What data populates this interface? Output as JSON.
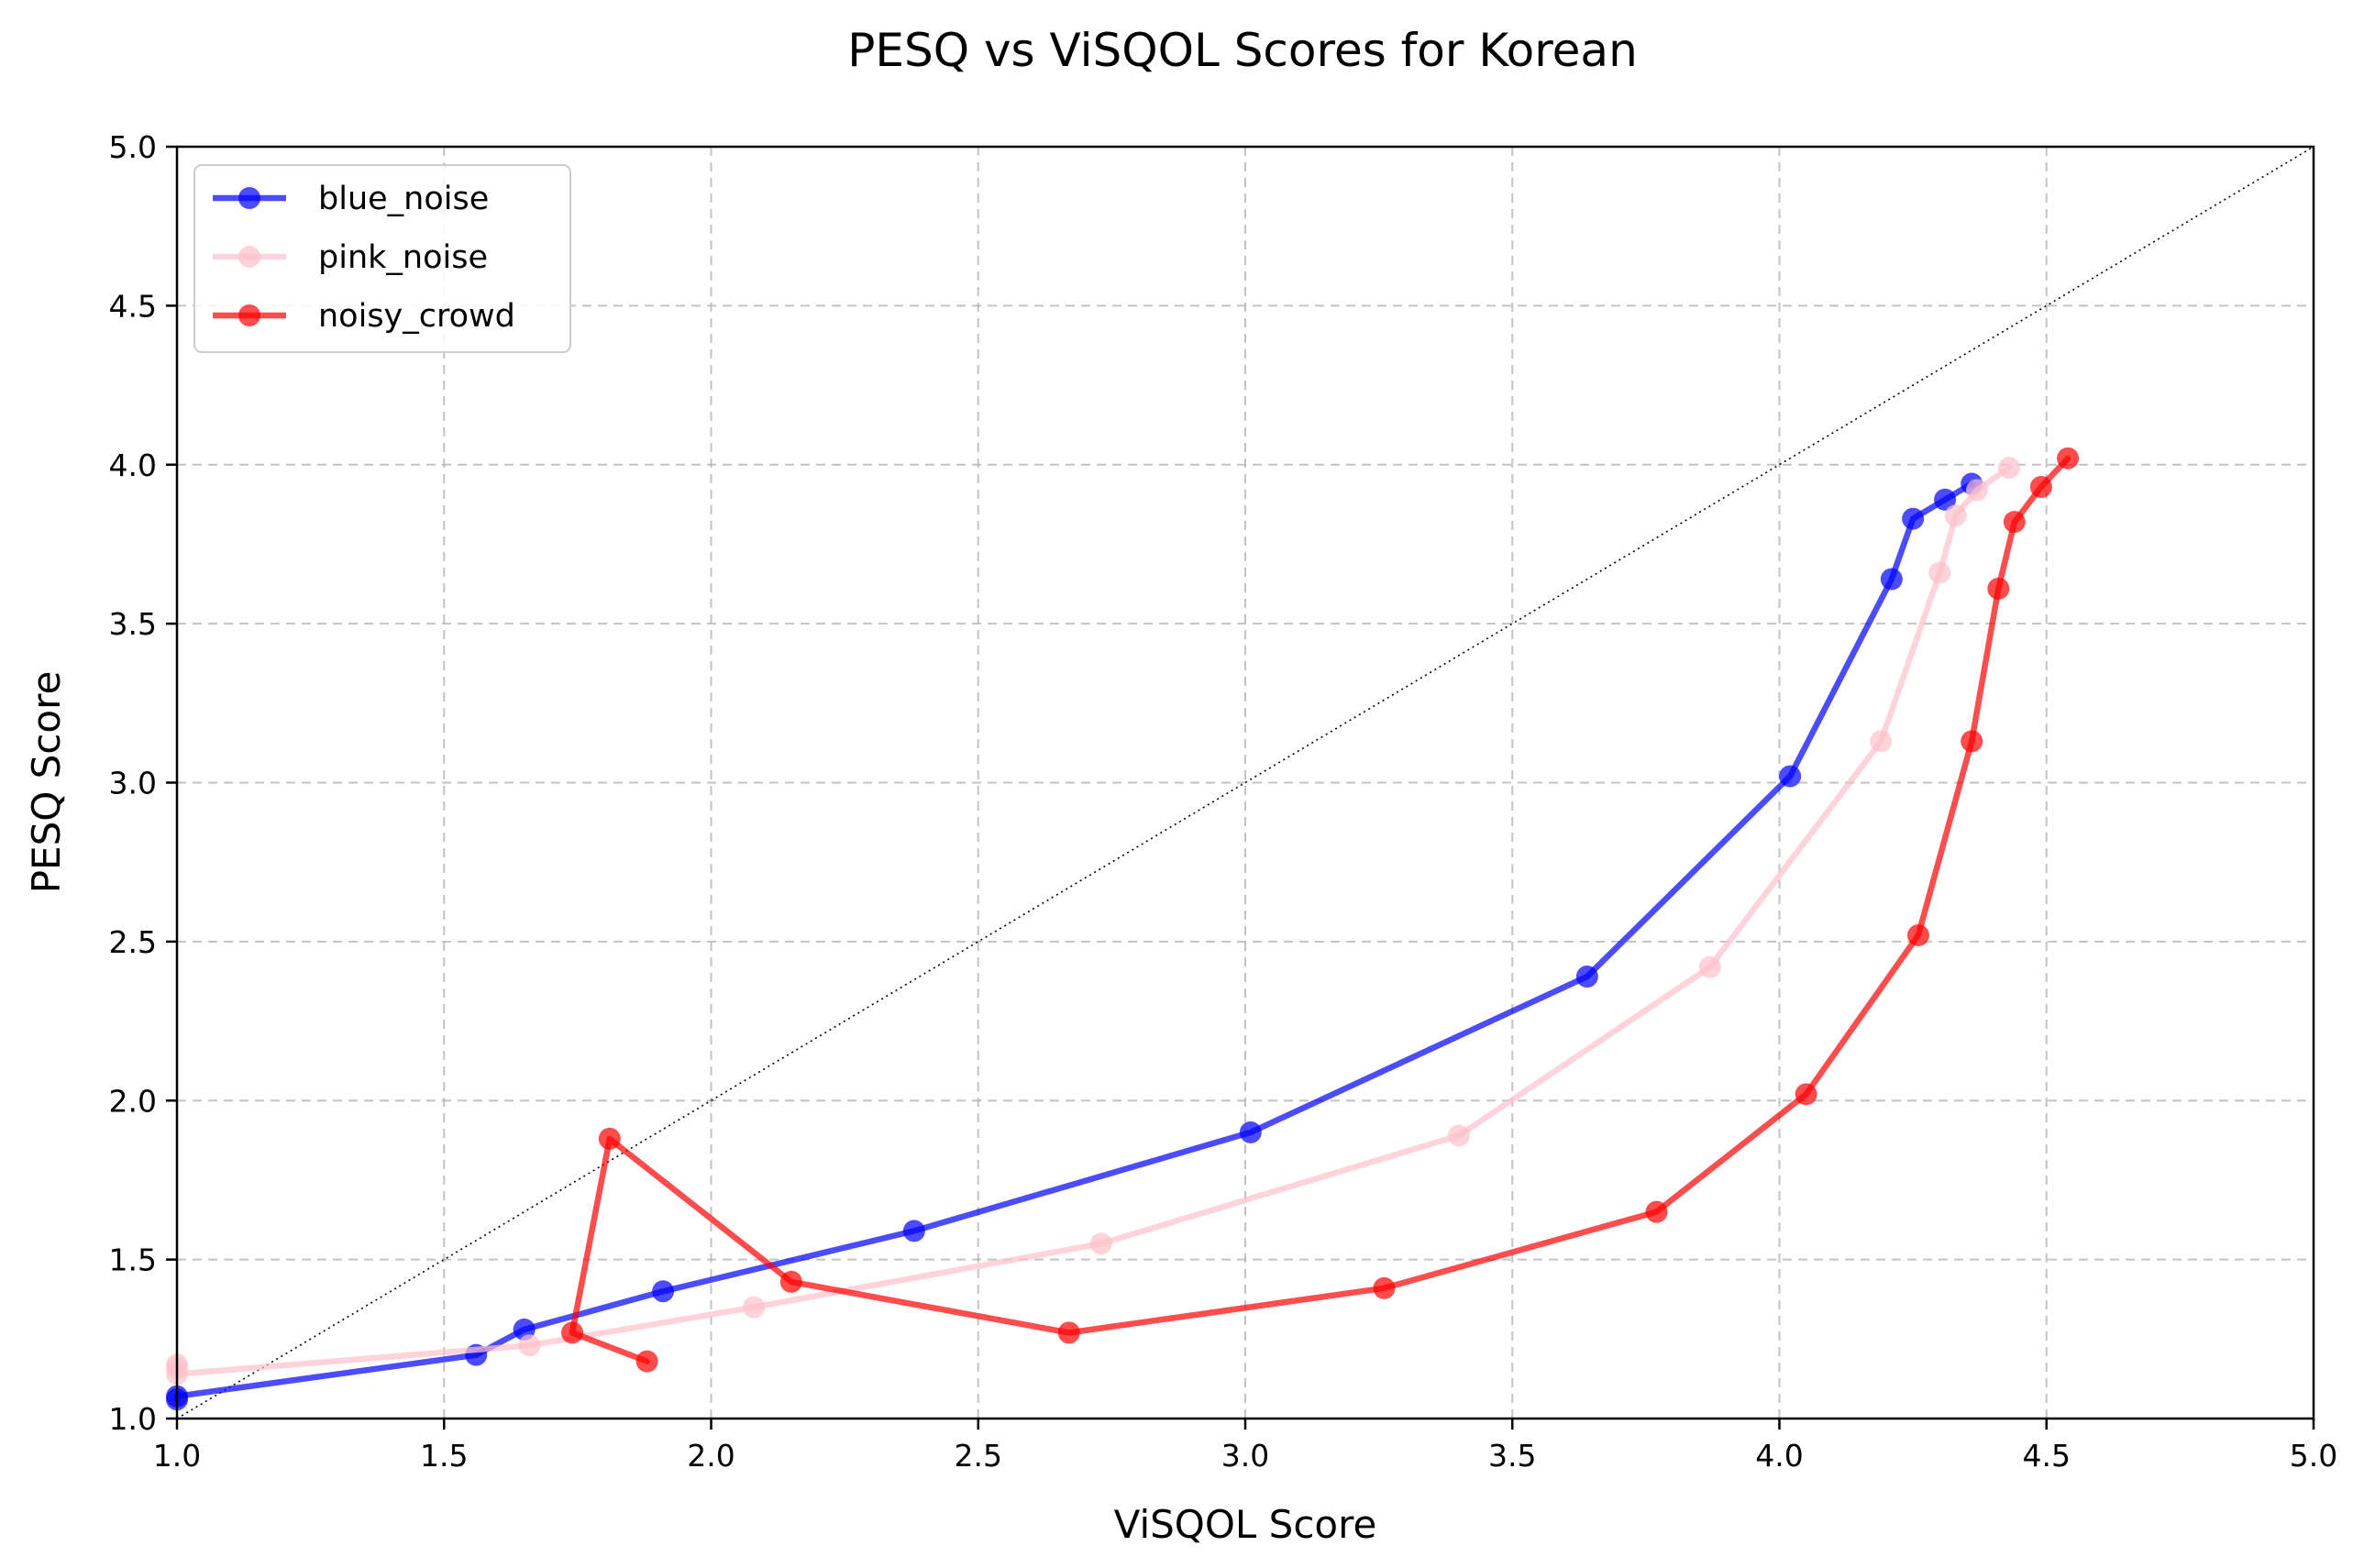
{
  "chart_data": {
    "type": "line",
    "title": "PESQ vs ViSQOL Scores for Korean",
    "xlabel": "ViSQOL Score",
    "ylabel": "PESQ Score",
    "xlim": [
      1.0,
      5.0
    ],
    "ylim": [
      1.0,
      5.0
    ],
    "xticks": [
      "1.0",
      "1.5",
      "2.0",
      "2.5",
      "3.0",
      "3.5",
      "4.0",
      "4.5",
      "5.0"
    ],
    "yticks": [
      "1.0",
      "1.5",
      "2.0",
      "2.5",
      "3.0",
      "3.5",
      "4.0",
      "4.5",
      "5.0"
    ],
    "grid": true,
    "legend_position": "upper-left",
    "reference_line": {
      "style": "dotted",
      "color": "#000000",
      "from": [
        1.0,
        1.0
      ],
      "to": [
        5.0,
        5.0
      ]
    },
    "series": [
      {
        "name": "blue_noise",
        "color": "#0000ff",
        "points": [
          [
            4.36,
            3.94
          ],
          [
            4.31,
            3.89
          ],
          [
            4.25,
            3.83
          ],
          [
            4.21,
            3.64
          ],
          [
            4.02,
            3.02
          ],
          [
            3.64,
            2.39
          ],
          [
            3.01,
            1.9
          ],
          [
            2.38,
            1.59
          ],
          [
            1.91,
            1.4
          ],
          [
            1.65,
            1.28
          ],
          [
            1.56,
            1.2
          ],
          [
            1.0,
            1.07
          ],
          [
            1.0,
            1.06
          ]
        ]
      },
      {
        "name": "pink_noise",
        "color": "#ffc0cb",
        "points": [
          [
            4.43,
            3.99
          ],
          [
            4.37,
            3.92
          ],
          [
            4.33,
            3.84
          ],
          [
            4.3,
            3.66
          ],
          [
            4.19,
            3.13
          ],
          [
            3.87,
            2.42
          ],
          [
            3.4,
            1.89
          ],
          [
            2.73,
            1.55
          ],
          [
            2.08,
            1.35
          ],
          [
            1.66,
            1.23
          ],
          [
            1.0,
            1.14
          ],
          [
            1.0,
            1.16
          ],
          [
            1.0,
            1.17
          ]
        ]
      },
      {
        "name": "noisy_crowd",
        "color": "#ff0000",
        "points": [
          [
            4.54,
            4.02
          ],
          [
            4.49,
            3.93
          ],
          [
            4.44,
            3.82
          ],
          [
            4.41,
            3.61
          ],
          [
            4.36,
            3.13
          ],
          [
            4.26,
            2.52
          ],
          [
            4.05,
            2.02
          ],
          [
            3.77,
            1.65
          ],
          [
            3.26,
            1.41
          ],
          [
            2.67,
            1.27
          ],
          [
            2.15,
            1.43
          ],
          [
            1.81,
            1.88
          ],
          [
            1.74,
            1.27
          ],
          [
            1.88,
            1.18
          ]
        ]
      }
    ]
  }
}
